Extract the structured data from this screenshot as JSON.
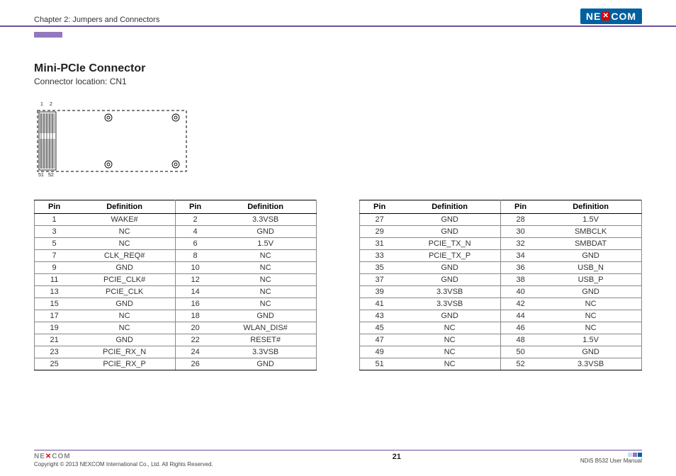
{
  "header": {
    "chapter": "Chapter 2: Jumpers and Connectors",
    "brand": "NEXCOM",
    "brand_bg": "#0060a0",
    "rule_color": "#6a4fa0",
    "tab_color": "#9278bd"
  },
  "section": {
    "title": "Mini-PCIe Connector",
    "subtitle": "Connector location: CN1"
  },
  "diagram": {
    "pin_top_left": "1",
    "pin_top_right": "2",
    "pin_bot_left": "51",
    "pin_bot_right": "52",
    "outline_color": "#000000",
    "fill": "#ffffff"
  },
  "table_headers": {
    "pin": "Pin",
    "def": "Definition"
  },
  "table1_rows": [
    {
      "p1": "1",
      "d1": "WAKE#",
      "p2": "2",
      "d2": "3.3VSB"
    },
    {
      "p1": "3",
      "d1": "NC",
      "p2": "4",
      "d2": "GND"
    },
    {
      "p1": "5",
      "d1": "NC",
      "p2": "6",
      "d2": "1.5V"
    },
    {
      "p1": "7",
      "d1": "CLK_REQ#",
      "p2": "8",
      "d2": "NC"
    },
    {
      "p1": "9",
      "d1": "GND",
      "p2": "10",
      "d2": "NC"
    },
    {
      "p1": "11",
      "d1": "PCIE_CLK#",
      "p2": "12",
      "d2": "NC"
    },
    {
      "p1": "13",
      "d1": "PCIE_CLK",
      "p2": "14",
      "d2": "NC"
    },
    {
      "p1": "15",
      "d1": "GND",
      "p2": "16",
      "d2": "NC"
    },
    {
      "p1": "17",
      "d1": "NC",
      "p2": "18",
      "d2": "GND"
    },
    {
      "p1": "19",
      "d1": "NC",
      "p2": "20",
      "d2": "WLAN_DIS#"
    },
    {
      "p1": "21",
      "d1": "GND",
      "p2": "22",
      "d2": "RESET#"
    },
    {
      "p1": "23",
      "d1": "PCIE_RX_N",
      "p2": "24",
      "d2": "3.3VSB"
    },
    {
      "p1": "25",
      "d1": "PCIE_RX_P",
      "p2": "26",
      "d2": "GND"
    }
  ],
  "table2_rows": [
    {
      "p1": "27",
      "d1": "GND",
      "p2": "28",
      "d2": "1.5V"
    },
    {
      "p1": "29",
      "d1": "GND",
      "p2": "30",
      "d2": "SMBCLK"
    },
    {
      "p1": "31",
      "d1": "PCIE_TX_N",
      "p2": "32",
      "d2": "SMBDAT"
    },
    {
      "p1": "33",
      "d1": "PCIE_TX_P",
      "p2": "34",
      "d2": "GND"
    },
    {
      "p1": "35",
      "d1": "GND",
      "p2": "36",
      "d2": "USB_N"
    },
    {
      "p1": "37",
      "d1": "GND",
      "p2": "38",
      "d2": "USB_P"
    },
    {
      "p1": "39",
      "d1": "3.3VSB",
      "p2": "40",
      "d2": "GND"
    },
    {
      "p1": "41",
      "d1": "3.3VSB",
      "p2": "42",
      "d2": "NC"
    },
    {
      "p1": "43",
      "d1": "GND",
      "p2": "44",
      "d2": "NC"
    },
    {
      "p1": "45",
      "d1": "NC",
      "p2": "46",
      "d2": "NC"
    },
    {
      "p1": "47",
      "d1": "NC",
      "p2": "48",
      "d2": "1.5V"
    },
    {
      "p1": "49",
      "d1": "NC",
      "p2": "50",
      "d2": "GND"
    },
    {
      "p1": "51",
      "d1": "NC",
      "p2": "52",
      "d2": "3.3VSB"
    }
  ],
  "footer": {
    "brand": "NEXCOM",
    "copyright": "Copyright © 2013 NEXCOM International Co., Ltd. All Rights Reserved.",
    "page": "21",
    "manual": "NDiS B532 User Manual",
    "dot_colors": [
      "#c9def0",
      "#9278bd",
      "#0060a0"
    ]
  }
}
